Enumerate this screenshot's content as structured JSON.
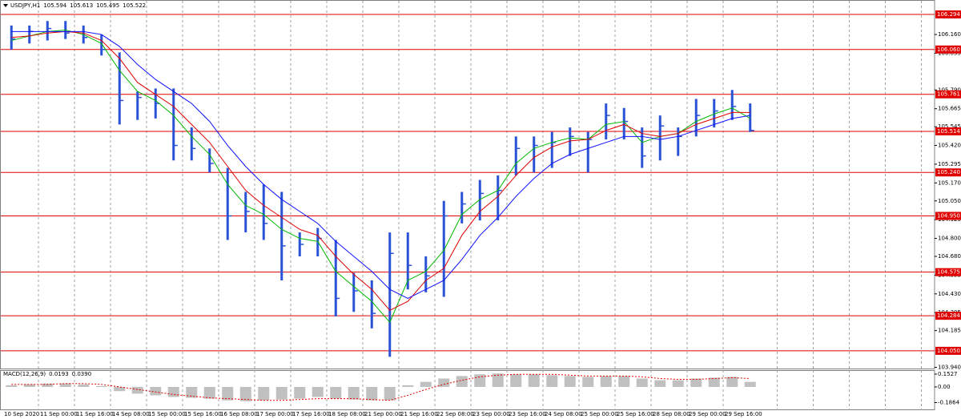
{
  "chart_data": {
    "type": "ohlc",
    "symbol": "USDJPY,H1",
    "quote": [
      105.594,
      105.613,
      105.495,
      105.522
    ],
    "categories": [
      "10 Sep 2020",
      null,
      "11 Sep 00:00",
      null,
      "11 Sep 16:00",
      null,
      "14 Sep 08:00",
      null,
      "15 Sep 00:00",
      null,
      "15 Sep 16:00",
      null,
      "16 Sep 08:00",
      null,
      "17 Sep 00:00",
      null,
      "17 Sep 16:00",
      null,
      "18 Sep 08:00",
      null,
      "21 Sep 00:00",
      null,
      "21 Sep 16:00",
      null,
      "22 Sep 08:00",
      null,
      "23 Sep 00:00",
      null,
      "23 Sep 16:00",
      null,
      "24 Sep 08:00",
      null,
      "25 Sep 00:00",
      null,
      "25 Sep 16:00",
      null,
      "28 Sep 08:00",
      null,
      "29 Sep 00:00",
      null,
      "29 Sep 16:00",
      null
    ],
    "bars": {
      "color": "#2a52d6",
      "high": [
        106.22,
        106.22,
        106.25,
        106.25,
        106.22,
        106.16,
        106.04,
        105.78,
        105.8,
        105.8,
        105.54,
        105.4,
        105.27,
        105.11,
        105.16,
        105.11,
        104.84,
        104.87,
        104.79,
        104.57,
        104.52,
        104.84,
        104.84,
        104.68,
        105.05,
        105.11,
        105.19,
        105.22,
        105.48,
        105.48,
        105.51,
        105.54,
        105.51,
        105.7,
        105.67,
        105.54,
        105.62,
        105.54,
        105.73,
        105.73,
        105.79,
        105.7
      ],
      "low": [
        106.06,
        106.1,
        106.12,
        106.13,
        106.1,
        106.02,
        105.56,
        105.59,
        105.6,
        105.32,
        105.32,
        105.24,
        104.79,
        104.84,
        104.79,
        104.52,
        104.68,
        104.68,
        104.28,
        104.31,
        104.2,
        104.01,
        104.46,
        104.44,
        104.41,
        104.9,
        104.92,
        104.92,
        105.22,
        105.24,
        105.27,
        105.35,
        105.24,
        105.46,
        105.46,
        105.27,
        105.32,
        105.35,
        105.48,
        105.54,
        105.59,
        105.51
      ],
      "close": [
        106.13,
        106.18,
        106.2,
        106.17,
        106.14,
        106.06,
        105.72,
        105.74,
        105.7,
        105.42,
        105.4,
        105.3,
        104.95,
        104.98,
        104.9,
        104.75,
        104.76,
        104.8,
        104.4,
        104.45,
        104.3,
        104.7,
        104.62,
        104.55,
        104.95,
        105.03,
        105.1,
        105.12,
        105.4,
        105.42,
        105.44,
        105.48,
        105.46,
        105.62,
        105.58,
        105.35,
        105.55,
        105.48,
        105.62,
        105.65,
        105.68,
        105.52
      ]
    },
    "moving_averages": [
      {
        "color": "#00b800",
        "values": [
          106.12,
          106.15,
          106.18,
          106.19,
          106.16,
          106.1,
          105.92,
          105.78,
          105.72,
          105.62,
          105.48,
          105.36,
          105.16,
          105.02,
          104.96,
          104.86,
          104.8,
          104.78,
          104.58,
          104.48,
          104.38,
          104.24,
          104.52,
          104.58,
          104.72,
          104.96,
          105.06,
          105.12,
          105.3,
          105.4,
          105.44,
          105.47,
          105.46,
          105.56,
          105.58,
          105.44,
          105.48,
          105.5,
          105.58,
          105.63,
          105.67,
          105.6
        ]
      },
      {
        "color": "#e00000",
        "values": [
          106.14,
          106.15,
          106.17,
          106.18,
          106.17,
          106.12,
          106.0,
          105.84,
          105.76,
          105.68,
          105.56,
          105.44,
          105.28,
          105.12,
          105.02,
          104.94,
          104.86,
          104.82,
          104.68,
          104.56,
          104.46,
          104.32,
          104.38,
          104.52,
          104.6,
          104.82,
          104.98,
          105.08,
          105.22,
          105.34,
          105.41,
          105.45,
          105.46,
          105.52,
          105.56,
          105.5,
          105.48,
          105.5,
          105.56,
          105.6,
          105.64,
          105.64
        ]
      },
      {
        "color": "#1010ff",
        "values": [
          106.18,
          106.18,
          106.18,
          106.18,
          106.18,
          106.16,
          106.08,
          105.96,
          105.86,
          105.78,
          105.7,
          105.58,
          105.42,
          105.28,
          105.16,
          105.06,
          104.98,
          104.9,
          104.78,
          104.68,
          104.58,
          104.46,
          104.4,
          104.46,
          104.52,
          104.66,
          104.82,
          104.94,
          105.08,
          105.2,
          105.3,
          105.36,
          105.4,
          105.44,
          105.48,
          105.48,
          105.46,
          105.48,
          105.52,
          105.56,
          105.6,
          105.62
        ]
      }
    ],
    "levels": {
      "color": "#e00000",
      "values": [
        106.294,
        {
          "value": 106.06,
          "label": "106.060"
        },
        105.761,
        105.514,
        {
          "value": 105.24,
          "label": "105.240"
        },
        {
          "value": 104.95,
          "label": "104.950"
        },
        {
          "value": 104.575,
          "label": "104.575"
        },
        104.284,
        {
          "value": 104.05,
          "label": "104.050"
        }
      ]
    },
    "ylim": [
      103.932,
      106.326
    ],
    "yticks": [
      {
        "value": 106.16,
        "label": "106.160"
      },
      106.035,
      {
        "value": 105.79,
        "label": "105.790"
      },
      105.665,
      105.545,
      {
        "value": 105.42,
        "label": "105.420"
      },
      105.295,
      {
        "value": 105.17,
        "label": "105.170"
      },
      {
        "value": 105.05,
        "label": "105.050"
      },
      104.925,
      {
        "value": 104.8,
        "label": "104.800"
      },
      {
        "value": 104.68,
        "label": "104.680"
      },
      104.555,
      {
        "value": 104.43,
        "label": "104.430"
      },
      104.305,
      104.185,
      {
        "value": 103.94,
        "label": "103.940"
      }
    ],
    "grid": true,
    "indicator": {
      "title": "MACD(12,26,9)",
      "readout": [
        0.0193,
        {
          "value": 0.039,
          "label": "0.0390"
        }
      ],
      "ylim": [
        -0.277,
        0.2
      ],
      "yticks": [
        0.1527,
        {
          "value": 0,
          "label": "0.00"
        },
        -0.1864
      ],
      "histogram": {
        "color": "#c0c0c0",
        "values": [
          0.02,
          0.03,
          0.04,
          0.04,
          0.03,
          0.01,
          -0.05,
          -0.08,
          -0.1,
          -0.12,
          -0.13,
          -0.14,
          -0.16,
          -0.17,
          -0.16,
          -0.15,
          -0.14,
          -0.12,
          -0.14,
          -0.15,
          -0.16,
          -0.16,
          0.02,
          0.06,
          0.1,
          0.13,
          0.15,
          0.16,
          0.15,
          0.15,
          0.14,
          0.13,
          0.12,
          0.13,
          0.13,
          0.1,
          0.08,
          0.08,
          0.1,
          0.11,
          0.12,
          0.06
        ]
      },
      "signal": {
        "color": "#e00000",
        "values": [
          0.03,
          0.03,
          0.03,
          0.04,
          0.04,
          0.03,
          0.0,
          -0.03,
          -0.06,
          -0.09,
          -0.11,
          -0.13,
          -0.14,
          -0.15,
          -0.16,
          -0.16,
          -0.15,
          -0.14,
          -0.14,
          -0.14,
          -0.15,
          -0.16,
          -0.1,
          -0.03,
          0.03,
          0.08,
          0.12,
          0.14,
          0.15,
          0.15,
          0.15,
          0.14,
          0.13,
          0.13,
          0.13,
          0.12,
          0.1,
          0.09,
          0.09,
          0.1,
          0.11,
          0.1
        ]
      }
    }
  }
}
